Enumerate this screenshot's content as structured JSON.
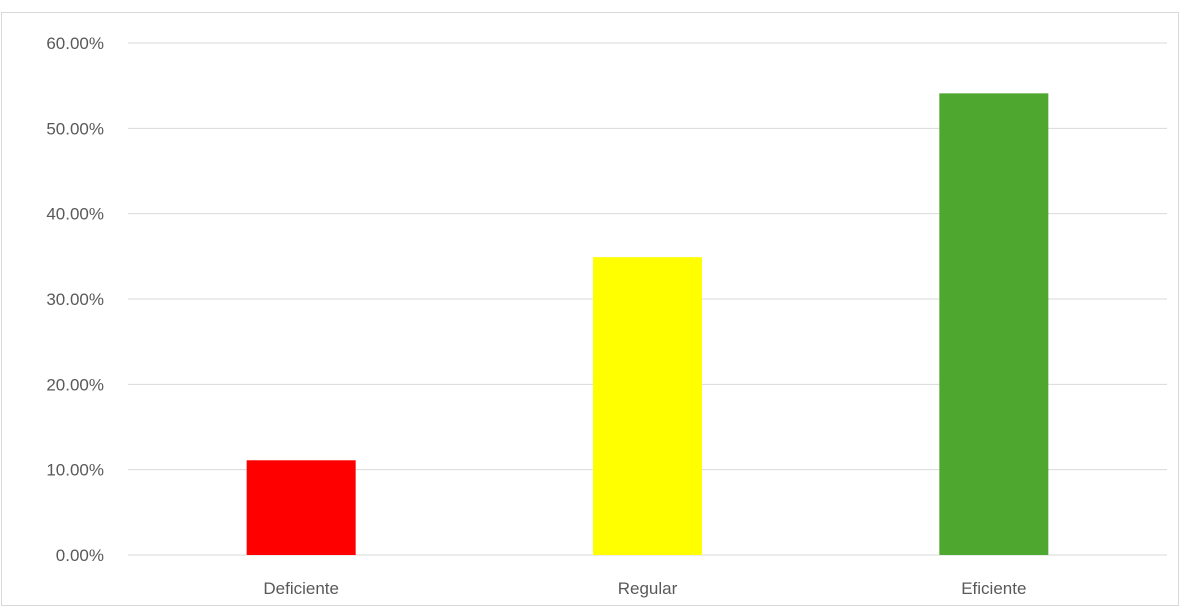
{
  "chart_data": {
    "type": "bar",
    "categories": [
      "Deficiente",
      "Regular",
      "Eficiente"
    ],
    "values": [
      0.111,
      0.349,
      0.541
    ],
    "colors": [
      "#ff0000",
      "#ffff00",
      "#4ea72e"
    ],
    "ylim": [
      0,
      0.6
    ],
    "yticks": [
      0,
      0.1,
      0.2,
      0.3,
      0.4,
      0.5,
      0.6
    ],
    "ytick_labels": [
      "0.00%",
      "10.00%",
      "20.00%",
      "30.00%",
      "40.00%",
      "50.00%",
      "60.00%"
    ],
    "grid": true,
    "grid_color": "#d9d9d9",
    "title": "",
    "xlabel": "",
    "ylabel": ""
  }
}
